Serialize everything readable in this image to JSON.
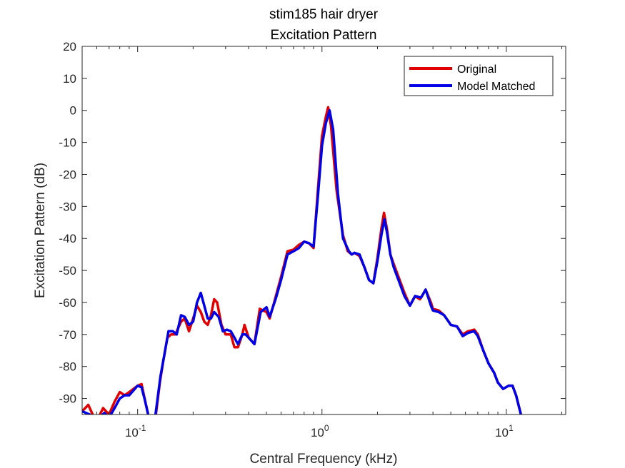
{
  "chart_data": {
    "type": "line",
    "title": "stim185 hair dryer",
    "subtitle": "Excitation Pattern",
    "xlabel": "Central Frequency (kHz)",
    "ylabel": "Excitation Pattern (dB)",
    "xscale": "log",
    "xlim": [
      0.05,
      21
    ],
    "ylim": [
      -95,
      20
    ],
    "grid": false,
    "legend_position": "top-right",
    "yticks": [
      20,
      10,
      0,
      -10,
      -20,
      -30,
      -40,
      -50,
      -60,
      -70,
      -80,
      -90
    ],
    "xticks": [
      {
        "value": 0.1,
        "base": "10",
        "exp": "-1"
      },
      {
        "value": 1,
        "base": "10",
        "exp": "0"
      },
      {
        "value": 10,
        "base": "10",
        "exp": "1"
      }
    ],
    "series": [
      {
        "name": "Original",
        "color": "#e00000",
        "points": [
          [
            0.05,
            -94
          ],
          [
            0.054,
            -92
          ],
          [
            0.057,
            -95
          ],
          [
            0.06,
            -97
          ],
          [
            0.065,
            -93
          ],
          [
            0.07,
            -95
          ],
          [
            0.075,
            -91
          ],
          [
            0.08,
            -88
          ],
          [
            0.085,
            -89
          ],
          [
            0.09,
            -88
          ],
          [
            0.1,
            -86
          ],
          [
            0.105,
            -85.5
          ],
          [
            0.11,
            -91
          ],
          [
            0.115,
            -96
          ],
          [
            0.12,
            -100
          ],
          [
            0.125,
            -96
          ],
          [
            0.132,
            -85
          ],
          [
            0.138,
            -78
          ],
          [
            0.145,
            -71
          ],
          [
            0.152,
            -70
          ],
          [
            0.16,
            -70
          ],
          [
            0.172,
            -66
          ],
          [
            0.18,
            -65
          ],
          [
            0.19,
            -69
          ],
          [
            0.2,
            -65
          ],
          [
            0.21,
            -61
          ],
          [
            0.22,
            -63
          ],
          [
            0.23,
            -66
          ],
          [
            0.24,
            -67
          ],
          [
            0.25,
            -64
          ],
          [
            0.26,
            -59
          ],
          [
            0.27,
            -60
          ],
          [
            0.285,
            -67
          ],
          [
            0.3,
            -70
          ],
          [
            0.32,
            -70
          ],
          [
            0.335,
            -74
          ],
          [
            0.35,
            -74
          ],
          [
            0.37,
            -70
          ],
          [
            0.38,
            -67
          ],
          [
            0.4,
            -71
          ],
          [
            0.43,
            -73
          ],
          [
            0.46,
            -62
          ],
          [
            0.5,
            -63
          ],
          [
            0.52,
            -65
          ],
          [
            0.55,
            -60
          ],
          [
            0.6,
            -52
          ],
          [
            0.65,
            -44
          ],
          [
            0.7,
            -43.5
          ],
          [
            0.75,
            -42
          ],
          [
            0.8,
            -41
          ],
          [
            0.85,
            -41.5
          ],
          [
            0.9,
            -43
          ],
          [
            0.95,
            -25
          ],
          [
            1.0,
            -8
          ],
          [
            1.05,
            -2
          ],
          [
            1.08,
            1
          ],
          [
            1.12,
            -5
          ],
          [
            1.2,
            -25
          ],
          [
            1.3,
            -39
          ],
          [
            1.38,
            -44
          ],
          [
            1.45,
            -45
          ],
          [
            1.5,
            -44.5
          ],
          [
            1.6,
            -45.5
          ],
          [
            1.7,
            -49
          ],
          [
            1.8,
            -53
          ],
          [
            1.9,
            -54
          ],
          [
            2.0,
            -46
          ],
          [
            2.1,
            -37
          ],
          [
            2.17,
            -32
          ],
          [
            2.25,
            -37
          ],
          [
            2.35,
            -45
          ],
          [
            2.45,
            -48
          ],
          [
            2.6,
            -52
          ],
          [
            2.8,
            -57
          ],
          [
            3.0,
            -61
          ],
          [
            3.2,
            -58
          ],
          [
            3.4,
            -59
          ],
          [
            3.65,
            -56
          ],
          [
            3.9,
            -60
          ],
          [
            4.0,
            -62
          ],
          [
            4.3,
            -62.5
          ],
          [
            4.6,
            -64
          ],
          [
            5.0,
            -67
          ],
          [
            5.4,
            -67.5
          ],
          [
            5.8,
            -70
          ],
          [
            6.2,
            -69
          ],
          [
            6.7,
            -68.5
          ],
          [
            7.0,
            -70
          ],
          [
            7.5,
            -75
          ],
          [
            8.0,
            -79
          ],
          [
            8.6,
            -82
          ],
          [
            9.0,
            -85
          ],
          [
            9.6,
            -87
          ],
          [
            10.3,
            -86
          ],
          [
            10.8,
            -86
          ],
          [
            11.3,
            -89
          ],
          [
            12.0,
            -95
          ]
        ]
      },
      {
        "name": "Model Matched",
        "color": "#0000e6",
        "points": [
          [
            0.05,
            -94
          ],
          [
            0.055,
            -95
          ],
          [
            0.058,
            -97
          ],
          [
            0.062,
            -96
          ],
          [
            0.066,
            -94.5
          ],
          [
            0.07,
            -96
          ],
          [
            0.075,
            -93
          ],
          [
            0.08,
            -90
          ],
          [
            0.085,
            -89
          ],
          [
            0.09,
            -89
          ],
          [
            0.1,
            -86
          ],
          [
            0.105,
            -86.5
          ],
          [
            0.11,
            -91
          ],
          [
            0.115,
            -96
          ],
          [
            0.12,
            -100
          ],
          [
            0.125,
            -95
          ],
          [
            0.133,
            -83
          ],
          [
            0.14,
            -76
          ],
          [
            0.147,
            -69
          ],
          [
            0.155,
            -69
          ],
          [
            0.163,
            -70
          ],
          [
            0.172,
            -64
          ],
          [
            0.18,
            -64.5
          ],
          [
            0.19,
            -67
          ],
          [
            0.2,
            -66
          ],
          [
            0.21,
            -60
          ],
          [
            0.22,
            -57
          ],
          [
            0.23,
            -61
          ],
          [
            0.24,
            -65
          ],
          [
            0.25,
            -65
          ],
          [
            0.26,
            -63
          ],
          [
            0.275,
            -64.5
          ],
          [
            0.29,
            -69
          ],
          [
            0.305,
            -68.5
          ],
          [
            0.32,
            -69
          ],
          [
            0.335,
            -71
          ],
          [
            0.35,
            -73
          ],
          [
            0.37,
            -70
          ],
          [
            0.385,
            -70
          ],
          [
            0.4,
            -71
          ],
          [
            0.43,
            -73
          ],
          [
            0.465,
            -63
          ],
          [
            0.5,
            -61.5
          ],
          [
            0.52,
            -64.5
          ],
          [
            0.56,
            -59
          ],
          [
            0.6,
            -53
          ],
          [
            0.65,
            -45
          ],
          [
            0.7,
            -44
          ],
          [
            0.75,
            -43
          ],
          [
            0.8,
            -41
          ],
          [
            0.85,
            -41.5
          ],
          [
            0.9,
            -42.5
          ],
          [
            0.95,
            -27
          ],
          [
            1.0,
            -11
          ],
          [
            1.05,
            -4
          ],
          [
            1.1,
            0
          ],
          [
            1.15,
            -6
          ],
          [
            1.22,
            -26
          ],
          [
            1.3,
            -40
          ],
          [
            1.4,
            -44
          ],
          [
            1.45,
            -45
          ],
          [
            1.5,
            -44.5
          ],
          [
            1.6,
            -45
          ],
          [
            1.7,
            -49
          ],
          [
            1.8,
            -53
          ],
          [
            1.9,
            -54
          ],
          [
            2.0,
            -47
          ],
          [
            2.1,
            -39
          ],
          [
            2.18,
            -34
          ],
          [
            2.25,
            -38
          ],
          [
            2.35,
            -45
          ],
          [
            2.45,
            -49
          ],
          [
            2.6,
            -53
          ],
          [
            2.8,
            -58
          ],
          [
            3.0,
            -61
          ],
          [
            3.2,
            -58
          ],
          [
            3.45,
            -58.5
          ],
          [
            3.65,
            -56
          ],
          [
            3.9,
            -61
          ],
          [
            4.0,
            -62.5
          ],
          [
            4.3,
            -63
          ],
          [
            4.6,
            -64
          ],
          [
            5.0,
            -67
          ],
          [
            5.4,
            -67.5
          ],
          [
            5.8,
            -70.5
          ],
          [
            6.2,
            -69.5
          ],
          [
            6.7,
            -69
          ],
          [
            7.0,
            -70.5
          ],
          [
            7.5,
            -75
          ],
          [
            8.0,
            -79
          ],
          [
            8.6,
            -82
          ],
          [
            9.0,
            -85
          ],
          [
            9.6,
            -87
          ],
          [
            10.3,
            -86
          ],
          [
            10.8,
            -86
          ],
          [
            11.3,
            -89
          ],
          [
            12.0,
            -95
          ]
        ]
      }
    ]
  }
}
